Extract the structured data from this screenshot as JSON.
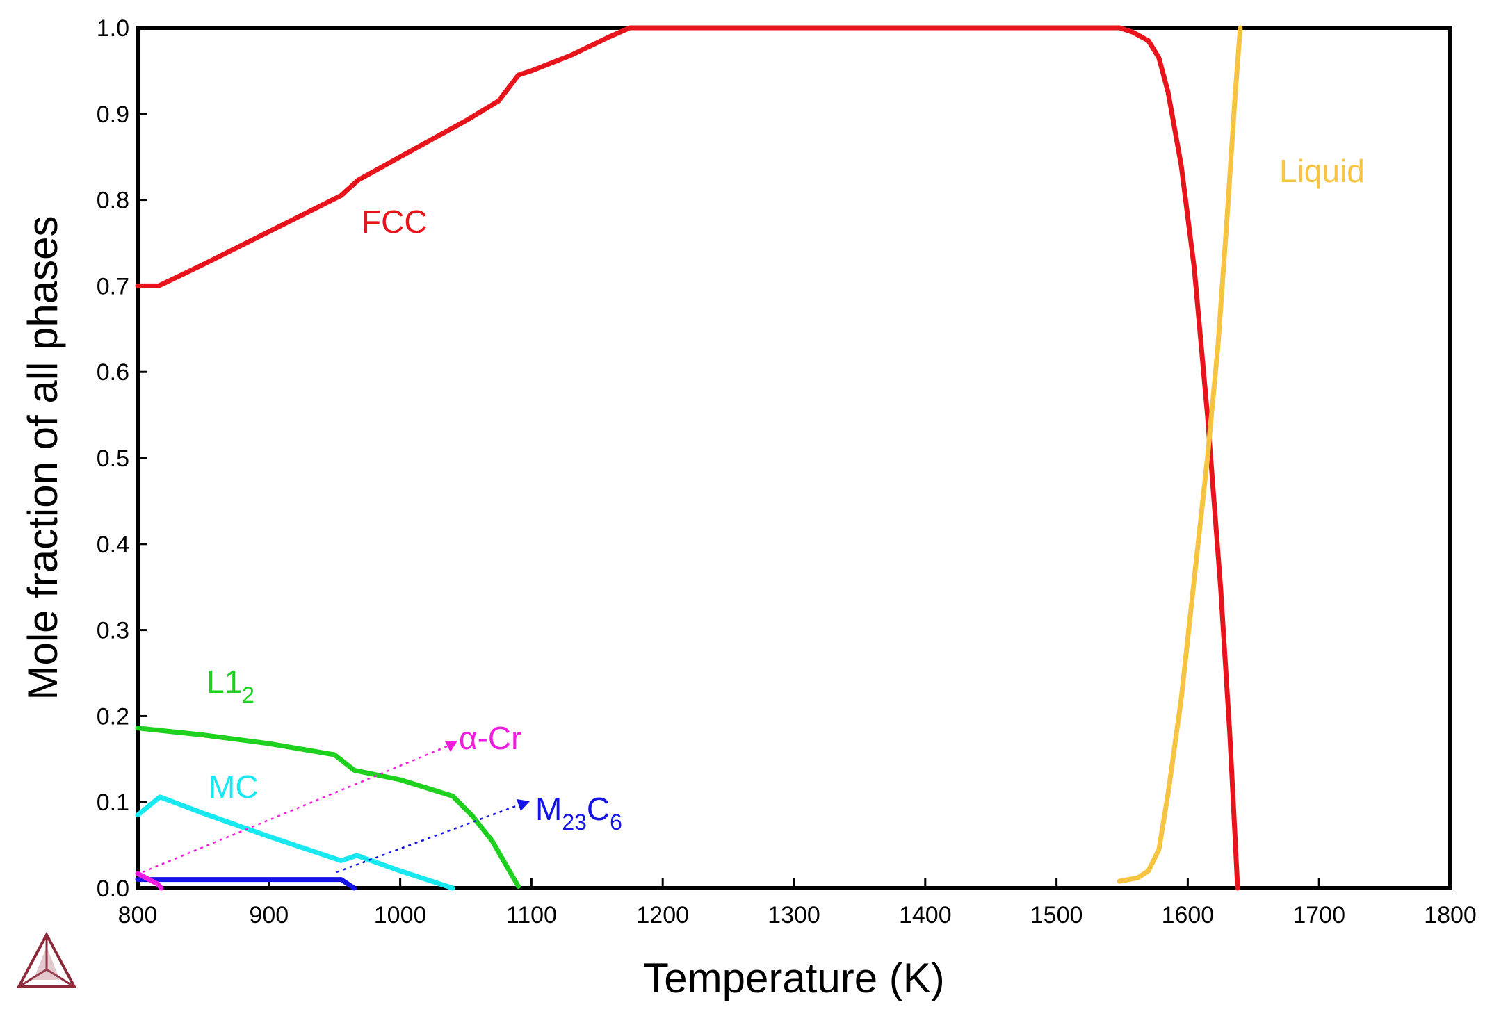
{
  "chart_data": {
    "type": "line",
    "title": "",
    "xlabel": "Temperature (K)",
    "ylabel": "Mole fraction of all phases",
    "xlim": [
      800,
      1800
    ],
    "ylim": [
      0.0,
      1.0
    ],
    "x_ticks": [
      "800",
      "900",
      "1000",
      "1100",
      "1200",
      "1300",
      "1400",
      "1500",
      "1600",
      "1700",
      "1800"
    ],
    "y_ticks": [
      "0.0",
      "0.1",
      "0.2",
      "0.3",
      "0.4",
      "0.5",
      "0.6",
      "0.7",
      "0.8",
      "0.9",
      "1.0"
    ],
    "grid": false,
    "series": [
      {
        "name": "FCC",
        "label": "FCC",
        "color": "#e8141c",
        "points": [
          [
            800,
            0.7
          ],
          [
            816,
            0.7
          ],
          [
            850,
            0.725
          ],
          [
            900,
            0.763
          ],
          [
            955,
            0.805
          ],
          [
            968,
            0.823
          ],
          [
            1000,
            0.85
          ],
          [
            1050,
            0.892
          ],
          [
            1075,
            0.915
          ],
          [
            1090,
            0.945
          ],
          [
            1100,
            0.95
          ],
          [
            1130,
            0.968
          ],
          [
            1160,
            0.99
          ],
          [
            1175,
            1.0
          ],
          [
            1548,
            1.0
          ],
          [
            1558,
            0.995
          ],
          [
            1570,
            0.985
          ],
          [
            1578,
            0.965
          ],
          [
            1585,
            0.925
          ],
          [
            1595,
            0.84
          ],
          [
            1605,
            0.72
          ],
          [
            1615,
            0.55
          ],
          [
            1625,
            0.35
          ],
          [
            1632,
            0.18
          ],
          [
            1636,
            0.06
          ],
          [
            1638,
            0.0
          ]
        ]
      },
      {
        "name": "Liquid",
        "label": "Liquid",
        "color": "#f7c442",
        "points": [
          [
            1548,
            0.008
          ],
          [
            1562,
            0.012
          ],
          [
            1570,
            0.02
          ],
          [
            1578,
            0.045
          ],
          [
            1585,
            0.11
          ],
          [
            1595,
            0.22
          ],
          [
            1605,
            0.36
          ],
          [
            1615,
            0.5
          ],
          [
            1623,
            0.63
          ],
          [
            1630,
            0.78
          ],
          [
            1636,
            0.92
          ],
          [
            1640,
            1.0
          ]
        ]
      },
      {
        "name": "L1_2",
        "label": "L1",
        "label_sub": "2",
        "color": "#1fd11f",
        "points": [
          [
            800,
            0.186
          ],
          [
            850,
            0.178
          ],
          [
            900,
            0.168
          ],
          [
            950,
            0.155
          ],
          [
            965,
            0.137
          ],
          [
            1000,
            0.126
          ],
          [
            1040,
            0.107
          ],
          [
            1055,
            0.084
          ],
          [
            1070,
            0.055
          ],
          [
            1090,
            0.002
          ]
        ]
      },
      {
        "name": "MC",
        "label": "MC",
        "color": "#18e8f0",
        "points": [
          [
            800,
            0.085
          ],
          [
            817,
            0.106
          ],
          [
            850,
            0.087
          ],
          [
            900,
            0.06
          ],
          [
            955,
            0.032
          ],
          [
            967,
            0.038
          ],
          [
            1000,
            0.02
          ],
          [
            1040,
            0.0
          ]
        ]
      },
      {
        "name": "M23C6",
        "label": "M",
        "label_sub1": "23",
        "label_mid": "C",
        "label_sub2": "6",
        "color": "#1414e6",
        "points": [
          [
            800,
            0.01
          ],
          [
            955,
            0.01
          ],
          [
            965,
            0.0
          ]
        ]
      },
      {
        "name": "α-Cr",
        "label": "α-Cr",
        "color": "#f01ce0",
        "points": [
          [
            800,
            0.017
          ],
          [
            815,
            0.005
          ],
          [
            818,
            0.0
          ]
        ]
      }
    ]
  }
}
